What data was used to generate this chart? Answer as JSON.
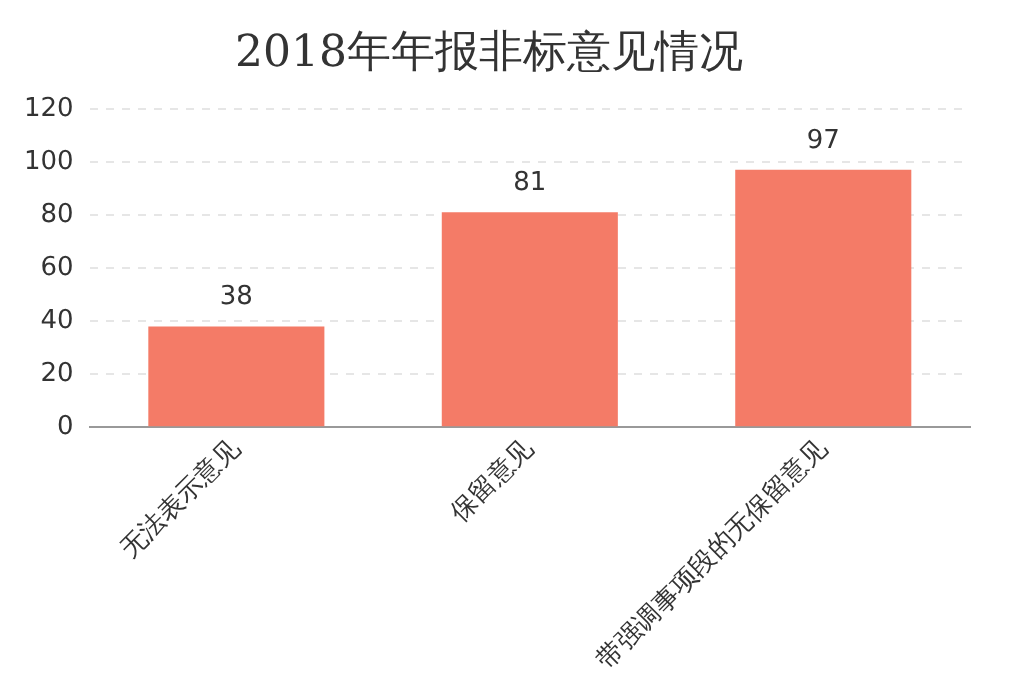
{
  "chart_data": {
    "type": "bar",
    "title": "2018年年报非标意见情况",
    "categories": [
      "无法表示意见",
      "保留意见",
      "带强调事项段的无保留意见"
    ],
    "values": [
      38,
      81,
      97
    ],
    "color": "#f47b67",
    "ylim": [
      0,
      120
    ],
    "yticks": [
      0,
      20,
      40,
      60,
      80,
      100,
      120
    ],
    "grid": "y",
    "data_labels": true
  }
}
